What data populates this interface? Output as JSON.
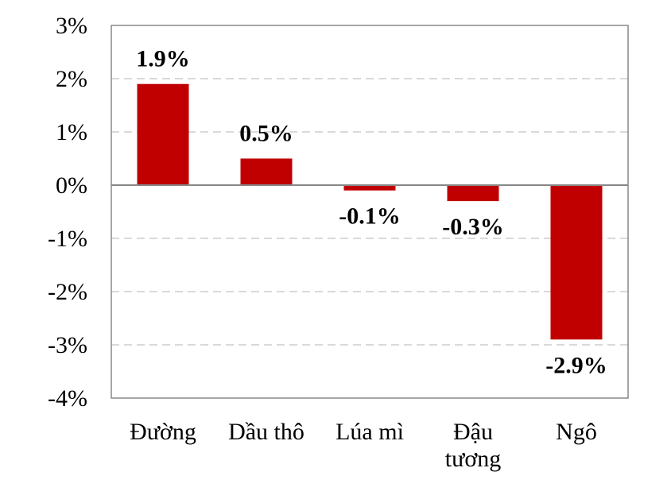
{
  "chart_data": {
    "type": "bar",
    "categories": [
      "Đường",
      "Dầu thô",
      "Lúa mì",
      "Đậu tương",
      "Ngô"
    ],
    "category_lines": [
      [
        "Đường"
      ],
      [
        "Dầu thô"
      ],
      [
        "Lúa mì"
      ],
      [
        "Đậu",
        "tương"
      ],
      [
        "Ngô"
      ]
    ],
    "values": [
      1.9,
      0.5,
      -0.1,
      -0.3,
      -2.9
    ],
    "data_labels": [
      "1.9%",
      "0.5%",
      "-0.1%",
      "-0.3%",
      "-2.9%"
    ],
    "yticks": [
      3,
      2,
      1,
      0,
      -1,
      -2,
      -3,
      -4
    ],
    "ytick_labels": [
      "3%",
      "2%",
      "1%",
      "0%",
      "-1%",
      "-2%",
      "-3%",
      "-4%"
    ],
    "ylim": [
      -4,
      3
    ],
    "title": "",
    "xlabel": "",
    "ylabel": "",
    "grid": "horizontal-dashed",
    "legend": "none",
    "colors": {
      "bar": "#c00000",
      "grid": "#d9d9d9",
      "axis": "#888888",
      "frame": "#888888",
      "text": "#000000"
    }
  }
}
